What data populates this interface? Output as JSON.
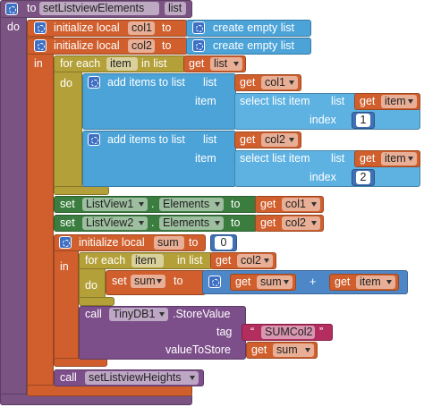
{
  "procedure": {
    "keyword": "to",
    "name": "setListviewElements",
    "param": "list",
    "body_label": "do"
  },
  "init_col1": {
    "keyword": "initialize local",
    "name": "col1",
    "to": "to",
    "value": "create empty list"
  },
  "init_col2": {
    "keyword": "initialize local",
    "name": "col2",
    "to": "to",
    "value": "create empty list"
  },
  "init_body_label": "in",
  "for_each_list": {
    "keyword": "for each",
    "var": "item",
    "in_list": "in list",
    "get": "get",
    "source": "list",
    "body_label": "do"
  },
  "add_col1": {
    "keyword": "add items to list",
    "list_label": "list",
    "list_get": "get",
    "list_var": "col1",
    "item_label": "item",
    "select": "select list item",
    "select_list_label": "list",
    "select_get": "get",
    "select_var": "item",
    "index_label": "index",
    "index": 1
  },
  "add_col2": {
    "keyword": "add items to list",
    "list_label": "list",
    "list_get": "get",
    "list_var": "col2",
    "item_label": "item",
    "select": "select list item",
    "select_list_label": "list",
    "select_get": "get",
    "select_var": "item",
    "index_label": "index",
    "index": 2
  },
  "set_listview1": {
    "keyword": "set",
    "component": "ListView1",
    "dot": ".",
    "property": "Elements",
    "to": "to",
    "get": "get",
    "var": "col1"
  },
  "set_listview2": {
    "keyword": "set",
    "component": "ListView2",
    "dot": ".",
    "property": "Elements",
    "to": "to",
    "get": "get",
    "var": "col2"
  },
  "init_sum": {
    "keyword": "initialize local",
    "name": "sum",
    "to": "to",
    "value": 0,
    "body_label": "in"
  },
  "for_each_col2": {
    "keyword": "for each",
    "var": "item",
    "in_list": "in list",
    "get": "get",
    "source": "col2",
    "body_label": "do"
  },
  "set_sum": {
    "keyword": "set",
    "var": "sum",
    "to": "to",
    "left_get": "get",
    "left_var": "sum",
    "operator": "+",
    "right_get": "get",
    "right_var": "item"
  },
  "store_value": {
    "keyword": "call",
    "component": "TinyDB1",
    "method": ".StoreValue",
    "tag_label": "tag",
    "open_quote": "“",
    "tag": "SUMCol2",
    "close_quote": "”",
    "value_label": "valueToStore",
    "get": "get",
    "var": "sum"
  },
  "call_heights": {
    "keyword": "call",
    "procedure": "setListviewHeights"
  }
}
